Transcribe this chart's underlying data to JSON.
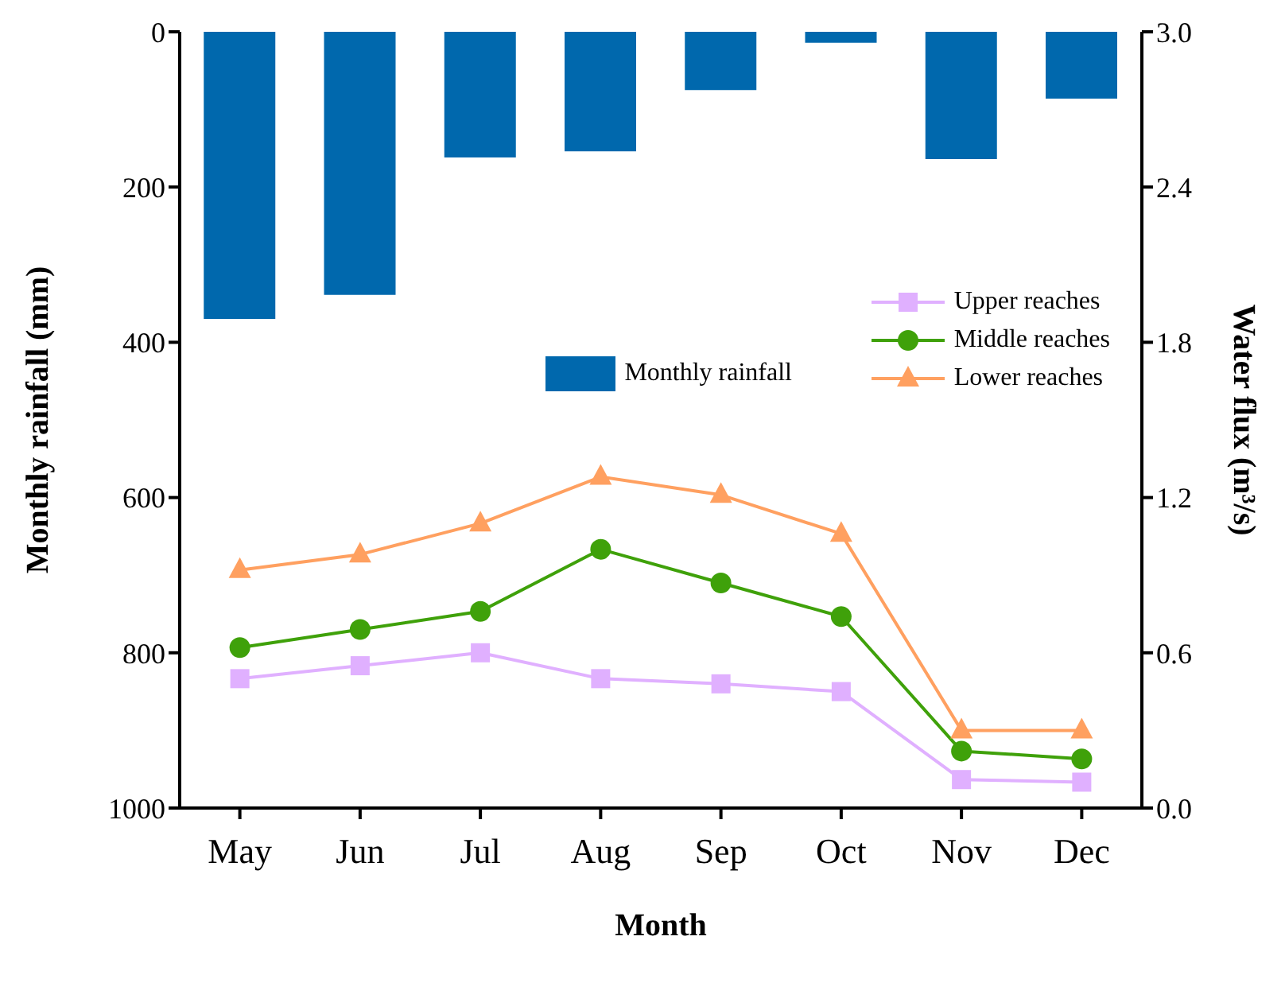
{
  "chart_data": {
    "type": "bar",
    "xlabel": "Month",
    "ylabel": "Monthly rainfall (mm)",
    "y2label": "Water flux (m³/s)",
    "categories": [
      "May",
      "Jun",
      "Jul",
      "Aug",
      "Sep",
      "Oct",
      "Nov",
      "Dec"
    ],
    "series": [
      {
        "name": "Monthly rainfall",
        "color": "#0068ad",
        "values": [
          370,
          339,
          162,
          154,
          75,
          14,
          164,
          86
        ]
      },
      {
        "name": "Upper reaches",
        "type": "line",
        "axis": "y2",
        "marker": "square",
        "color": "#e0b0ff",
        "values": [
          0.5,
          0.55,
          0.6,
          0.5,
          0.48,
          0.45,
          0.11,
          0.1
        ]
      },
      {
        "name": "Middle reaches",
        "type": "line",
        "axis": "y2",
        "marker": "circle",
        "color": "#3fa10a",
        "values": [
          0.62,
          0.69,
          0.76,
          1.0,
          0.87,
          0.74,
          0.22,
          0.19
        ]
      },
      {
        "name": "Lower reaches",
        "type": "line",
        "axis": "y2",
        "marker": "triangle",
        "color": "#ffa060",
        "values": [
          0.92,
          0.98,
          1.1,
          1.28,
          1.21,
          1.06,
          0.3,
          0.3
        ]
      }
    ],
    "ylim": [
      1000,
      0
    ],
    "yticks": [
      0,
      200,
      400,
      600,
      800,
      1000
    ],
    "y2lim": [
      0,
      3
    ],
    "y2ticks": [
      {
        "value": 0,
        "label": "0.0"
      },
      {
        "value": 0.6,
        "label": "0.6"
      },
      {
        "value": 1.2,
        "label": "1.2"
      },
      {
        "value": 1.8,
        "label": "1.8"
      },
      {
        "value": 2.4,
        "label": "2.4"
      },
      {
        "value": 3,
        "label": "3.0"
      }
    ],
    "legend": "top right"
  }
}
